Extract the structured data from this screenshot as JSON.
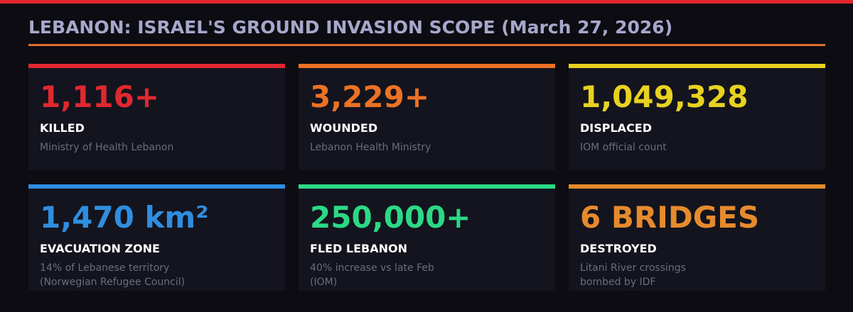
{
  "header": {
    "title": "LEBANON: ISRAEL'S GROUND INVASION SCOPE (March 27, 2026)"
  },
  "cards": [
    {
      "value": "1,116+",
      "label": "KILLED",
      "source_lines": [
        "Ministry of Health Lebanon"
      ],
      "accent": "#e0282e"
    },
    {
      "value": "3,229+",
      "label": "WOUNDED",
      "source_lines": [
        "Lebanon Health Ministry"
      ],
      "accent": "#ec7224"
    },
    {
      "value": "1,049,328",
      "label": "DISPLACED",
      "source_lines": [
        "IOM official count"
      ],
      "accent": "#e8d21f"
    },
    {
      "value": "1,470 km²",
      "label": "EVACUATION ZONE",
      "source_lines": [
        "14% of Lebanese territory",
        "(Norwegian Refugee Council)"
      ],
      "accent": "#2f8ee0"
    },
    {
      "value": "250,000+",
      "label": "FLED LEBANON",
      "source_lines": [
        "40% increase vs late Feb",
        "(IOM)"
      ],
      "accent": "#2bd985"
    },
    {
      "value": "6 BRIDGES",
      "label": "DESTROYED",
      "source_lines": [
        "Litani River crossings",
        "bombed by IDF"
      ],
      "accent": "#e68a2e"
    }
  ]
}
